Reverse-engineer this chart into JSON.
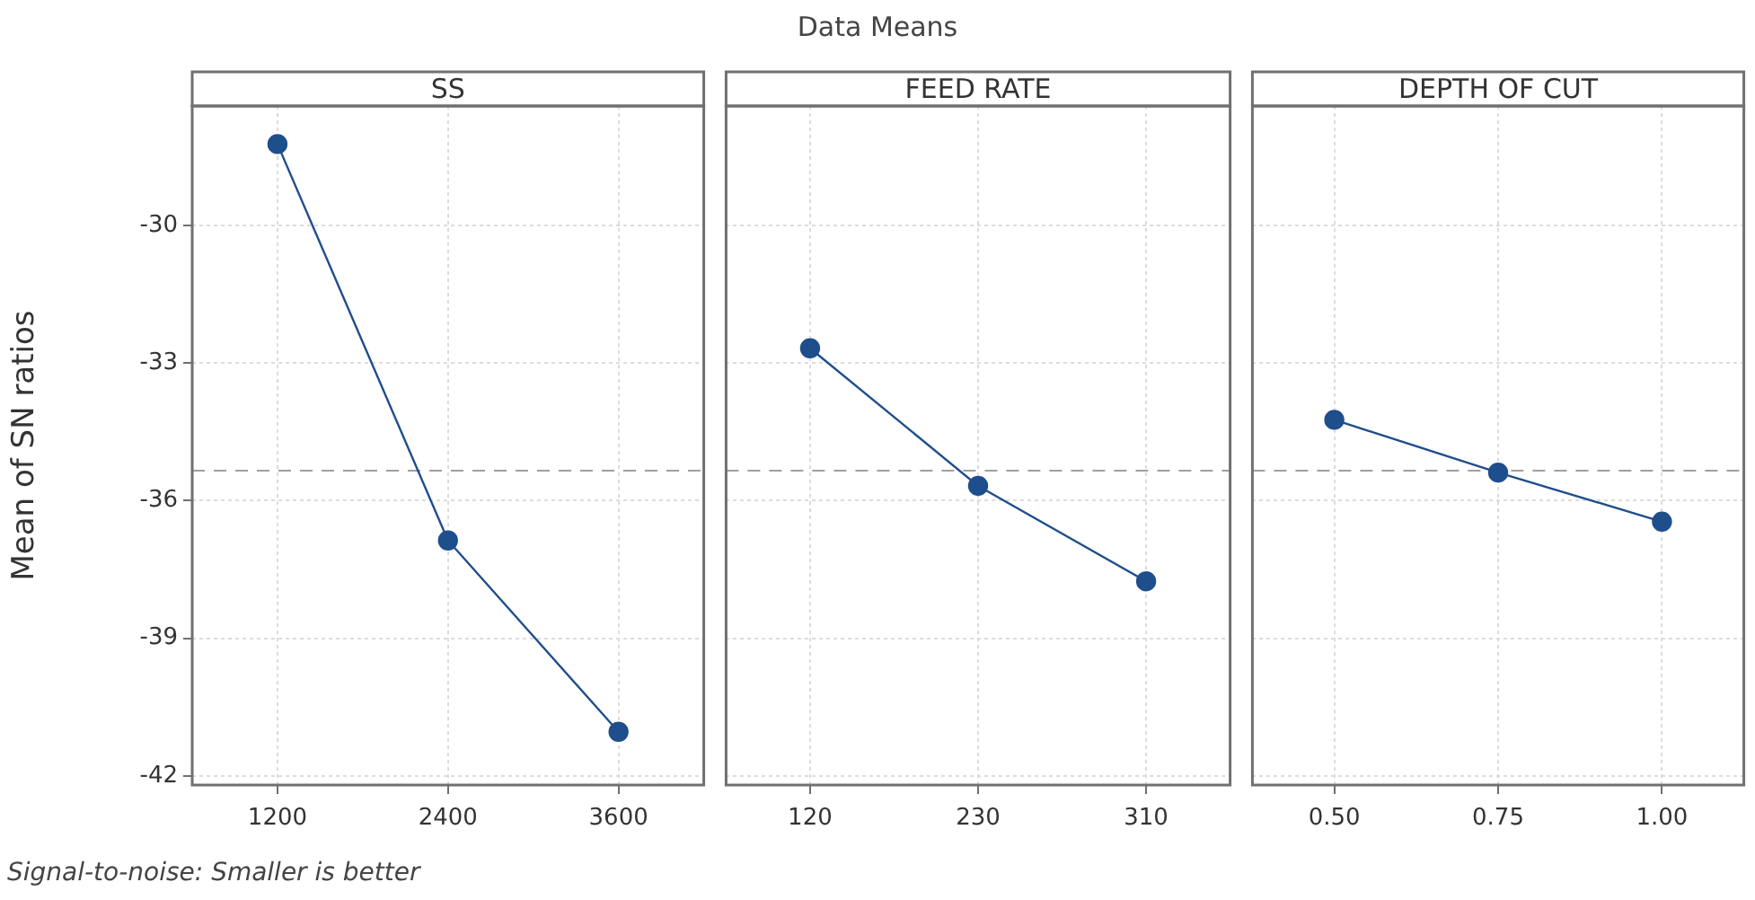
{
  "chart_data": [
    {
      "type": "line",
      "title": "SS",
      "ylabel": "Mean of SN ratios",
      "annotations": [
        "Data Means",
        "Signal-to-noise: Smaller is better"
      ],
      "categories": [
        "1200",
        "2400",
        "3600"
      ],
      "series": [
        {
          "color": "#1f4e8c",
          "values": [
            -28.23,
            -36.87,
            -41.04
          ]
        }
      ],
      "ylim": [
        -42.2,
        -27.4
      ],
      "yticks": [
        -42,
        -39,
        -36,
        -33,
        -30
      ],
      "grid": true,
      "marker": "circle",
      "line_style": "solid",
      "legend": false,
      "ref_lines": [
        {
          "axis": "y",
          "value": -35.35,
          "color": "#a0a0a0",
          "line_style": "dashed"
        }
      ]
    },
    {
      "type": "line",
      "title": "FEED RATE",
      "categories": [
        "120",
        "230",
        "310"
      ],
      "series": [
        {
          "color": "#1f4e8c",
          "values": [
            -32.68,
            -35.68,
            -37.76
          ]
        }
      ],
      "ylim": [
        -42.2,
        -27.4
      ],
      "yticks": [
        -42,
        -39,
        -36,
        -33,
        -30
      ],
      "tick_labels": "x",
      "grid": true,
      "marker": "circle",
      "line_style": "solid",
      "legend": false,
      "ref_lines": [
        {
          "axis": "y",
          "value": -35.35,
          "color": "#a0a0a0",
          "line_style": "dashed"
        }
      ]
    },
    {
      "type": "line",
      "title": "DEPTH OF CUT",
      "categories": [
        "0.50",
        "0.75",
        "1.00"
      ],
      "series": [
        {
          "color": "#1f4e8c",
          "values": [
            -34.24,
            -35.39,
            -36.46
          ]
        }
      ],
      "ylim": [
        -42.2,
        -27.4
      ],
      "yticks": [
        -42,
        -39,
        -36,
        -33,
        -30
      ],
      "tick_labels": "x",
      "grid": true,
      "marker": "circle",
      "line_style": "solid",
      "legend": false,
      "ref_lines": [
        {
          "axis": "y",
          "value": -35.35,
          "color": "#a0a0a0",
          "line_style": "dashed"
        }
      ]
    }
  ]
}
